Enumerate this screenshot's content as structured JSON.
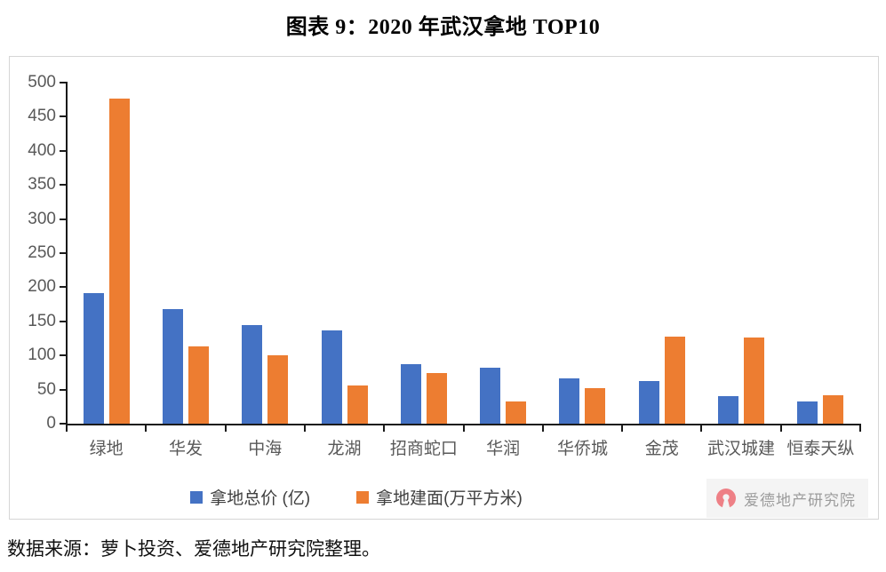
{
  "title": "图表 9：2020 年武汉拿地 TOP10",
  "source_note": "数据来源：萝卜投资、爱德地产研究院整理。",
  "watermark": {
    "text": "爱德地产研究院",
    "logo_color": "#EE8086"
  },
  "chart_data": {
    "type": "bar",
    "title": "图表 9：2020 年武汉拿地 TOP10",
    "categories": [
      "绿地",
      "华发",
      "中海",
      "龙湖",
      "招商蛇口",
      "华润",
      "华侨城",
      "金茂",
      "武汉城建",
      "恒泰天纵"
    ],
    "series": [
      {
        "name": "拿地总价 (亿)",
        "color": "#4472C4",
        "values": [
          192,
          168,
          144,
          137,
          87,
          82,
          66,
          62,
          40,
          33
        ]
      },
      {
        "name": "拿地建面(万平方米)",
        "color": "#ED7D31",
        "values": [
          476,
          113,
          100,
          56,
          74,
          33,
          52,
          127,
          126,
          42
        ]
      }
    ],
    "xlabel": "",
    "ylabel": "",
    "ylim": [
      0,
      500
    ],
    "ytick_step": 50,
    "grid": false,
    "legend_position": "bottom"
  }
}
